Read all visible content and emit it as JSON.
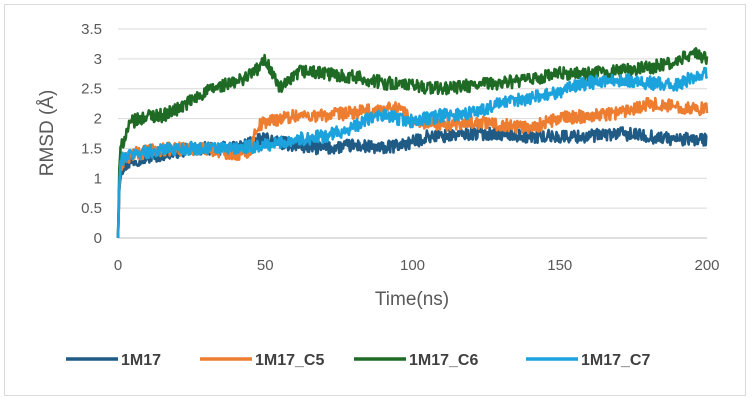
{
  "chart_data": {
    "type": "line",
    "title": "",
    "xlabel": "Time(ns)",
    "ylabel": "RMSD (Å)",
    "xlim": [
      0,
      200
    ],
    "ylim": [
      0,
      3.5
    ],
    "xticks": [
      "0",
      "50",
      "100",
      "150",
      "200"
    ],
    "yticks": [
      "0",
      "0.5",
      "1",
      "1.5",
      "2",
      "2.5",
      "3",
      "3.5"
    ],
    "grid": "horizontal",
    "legend_position": "bottom",
    "series": [
      {
        "name": "1M17",
        "color": "#1f5b85",
        "x": [
          0,
          0.5,
          1,
          2,
          5,
          10,
          20,
          30,
          40,
          45,
          50,
          55,
          60,
          70,
          80,
          90,
          100,
          105,
          110,
          120,
          130,
          140,
          150,
          160,
          170,
          180,
          190,
          200
        ],
        "values": [
          0,
          0.9,
          1.15,
          1.2,
          1.3,
          1.35,
          1.45,
          1.5,
          1.5,
          1.6,
          1.65,
          1.6,
          1.55,
          1.5,
          1.55,
          1.5,
          1.6,
          1.7,
          1.7,
          1.75,
          1.75,
          1.7,
          1.7,
          1.7,
          1.75,
          1.7,
          1.65,
          1.65
        ]
      },
      {
        "name": "1M17_C5",
        "color": "#ed7d31",
        "x": [
          0,
          0.5,
          1,
          2,
          5,
          10,
          20,
          30,
          40,
          45,
          47,
          50,
          55,
          60,
          70,
          80,
          90,
          95,
          100,
          110,
          120,
          130,
          140,
          150,
          160,
          170,
          180,
          190,
          200
        ],
        "values": [
          0,
          0.95,
          1.2,
          1.3,
          1.4,
          1.45,
          1.5,
          1.5,
          1.4,
          1.45,
          1.85,
          1.95,
          2.0,
          2.05,
          2.05,
          2.1,
          2.15,
          2.2,
          1.95,
          1.9,
          1.95,
          1.9,
          1.85,
          2.0,
          2.05,
          2.1,
          2.25,
          2.2,
          2.15
        ]
      },
      {
        "name": "1M17_C6",
        "color": "#1f6b25",
        "x": [
          0,
          0.5,
          1,
          2,
          3,
          5,
          8,
          10,
          15,
          20,
          25,
          30,
          35,
          40,
          45,
          48,
          50,
          52,
          55,
          58,
          62,
          70,
          80,
          90,
          100,
          110,
          120,
          130,
          140,
          150,
          160,
          170,
          180,
          190,
          195,
          200
        ],
        "values": [
          0,
          1.3,
          1.5,
          1.65,
          1.8,
          1.95,
          2.0,
          2.05,
          2.05,
          2.15,
          2.3,
          2.45,
          2.55,
          2.6,
          2.75,
          2.85,
          3.0,
          2.8,
          2.5,
          2.6,
          2.8,
          2.75,
          2.7,
          2.6,
          2.55,
          2.5,
          2.55,
          2.6,
          2.65,
          2.75,
          2.75,
          2.8,
          2.85,
          2.95,
          3.1,
          3.0
        ]
      },
      {
        "name": "1M17_C7",
        "color": "#1ca2dc",
        "x": [
          0,
          0.5,
          1,
          2,
          5,
          10,
          20,
          30,
          40,
          50,
          55,
          60,
          70,
          80,
          85,
          90,
          95,
          100,
          110,
          120,
          130,
          140,
          150,
          155,
          160,
          170,
          180,
          190,
          195,
          200
        ],
        "values": [
          0,
          1.0,
          1.3,
          1.35,
          1.4,
          1.45,
          1.5,
          1.5,
          1.5,
          1.55,
          1.6,
          1.65,
          1.7,
          1.85,
          2.0,
          2.05,
          2.0,
          1.95,
          2.05,
          2.1,
          2.25,
          2.35,
          2.45,
          2.55,
          2.6,
          2.65,
          2.6,
          2.55,
          2.7,
          2.75
        ]
      }
    ]
  }
}
